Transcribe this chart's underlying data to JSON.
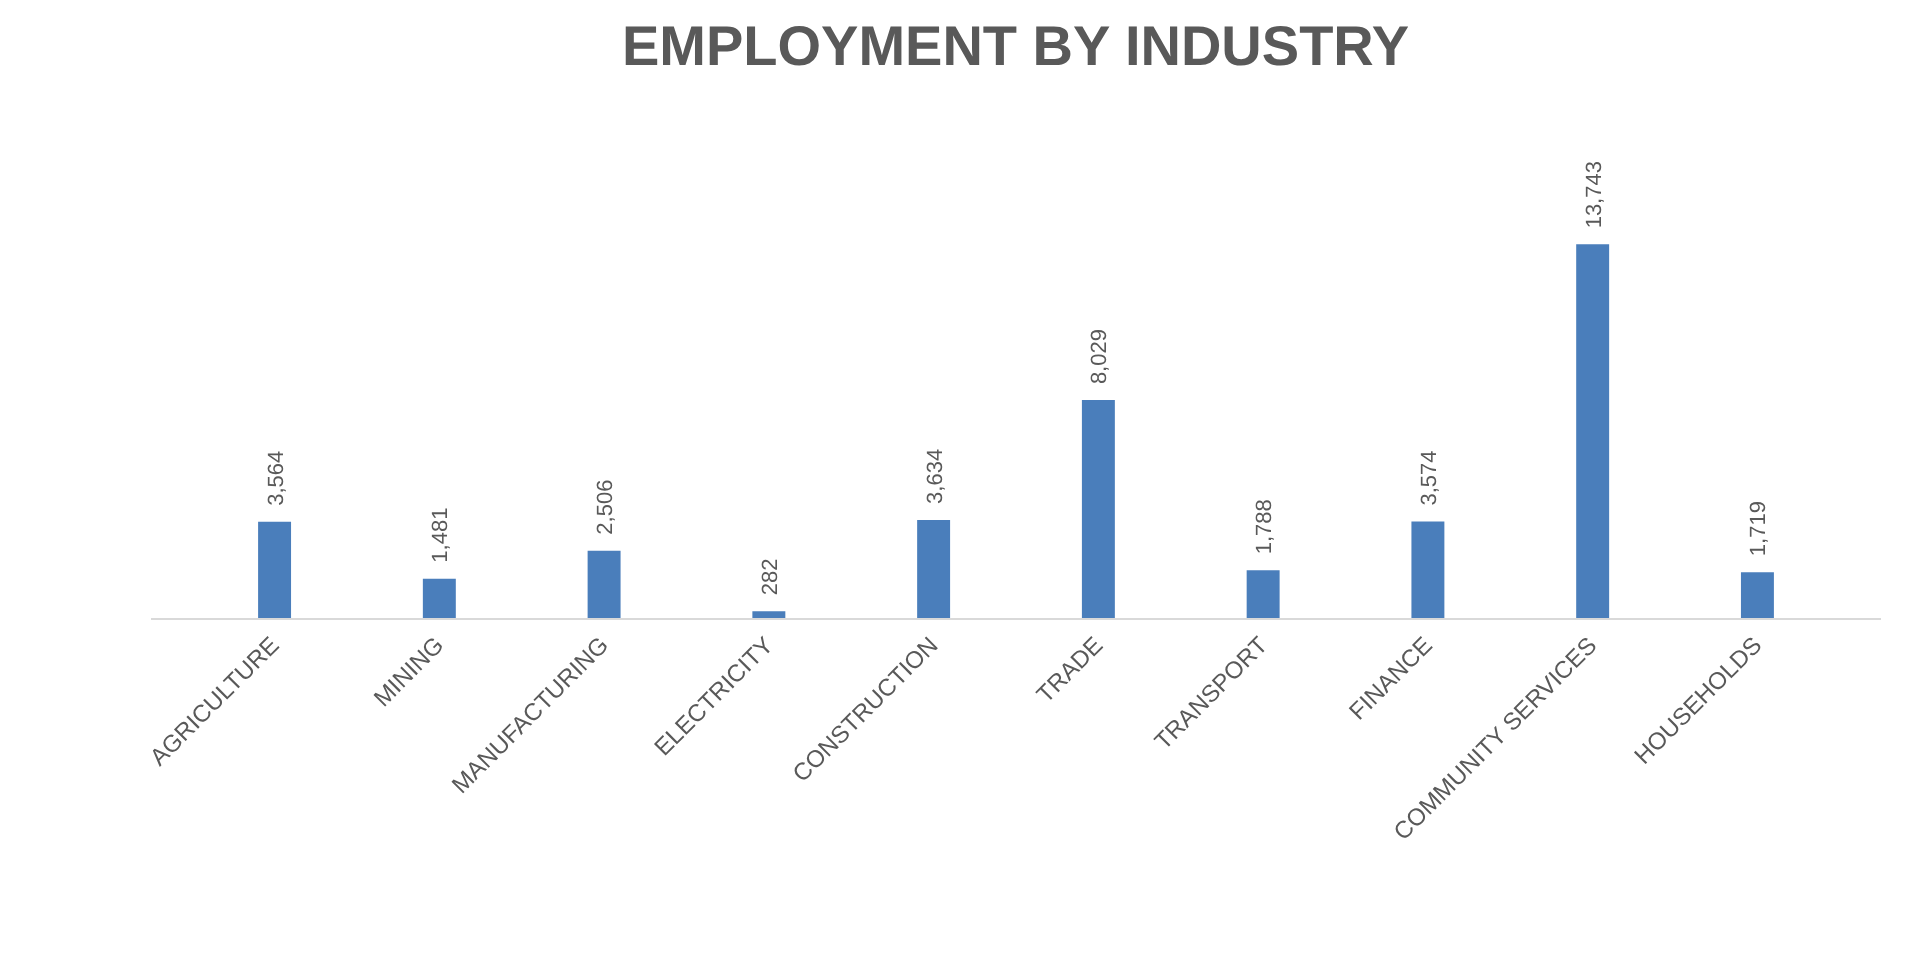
{
  "chart_data": {
    "type": "bar",
    "title": "EMPLOYMENT BY INDUSTRY",
    "categories": [
      "AGRICULTURE",
      "MINING",
      "MANUFACTURING",
      "ELECTRICITY",
      "CONSTRUCTION",
      "TRADE",
      "TRANSPORT",
      "FINANCE",
      "COMMUNITY SERVICES",
      "HOUSEHOLDS"
    ],
    "values": [
      3564,
      1481,
      2506,
      282,
      3634,
      8029,
      1788,
      3574,
      13743,
      1719
    ],
    "value_labels": [
      "3,564",
      "1,481",
      "2,506",
      "282",
      "3,634",
      "8,029",
      "1,788",
      "3,574",
      "13,743",
      "1,719"
    ],
    "color": "#4a7ebb",
    "tick_labels": "x"
  }
}
